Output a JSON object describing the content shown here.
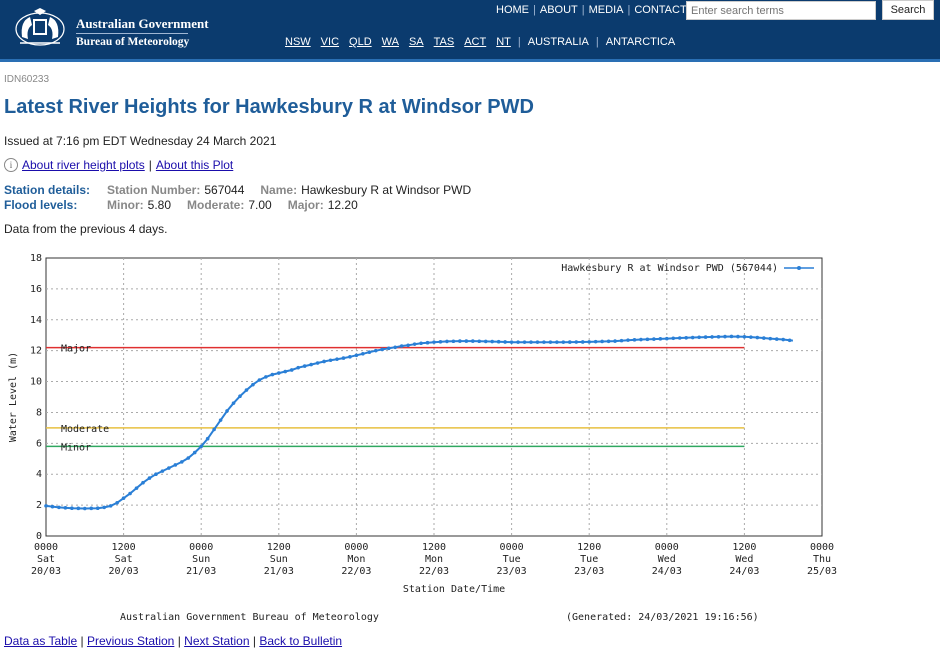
{
  "header": {
    "gov_title": "Australian Government",
    "bureau_name": "Bureau of Meteorology",
    "top_nav": [
      "HOME",
      "ABOUT",
      "MEDIA",
      "CONTACTS"
    ],
    "search_placeholder": "Enter search terms",
    "search_button": "Search",
    "states": [
      "NSW",
      "VIC",
      "QLD",
      "WA",
      "SA",
      "TAS",
      "ACT",
      "NT"
    ],
    "regions": [
      "AUSTRALIA",
      "ANTARCTICA"
    ]
  },
  "page": {
    "product_id": "IDN60233",
    "title": "Latest River Heights for Hawkesbury R at Windsor PWD",
    "issued": "Issued at 7:16 pm EDT Wednesday 24 March 2021",
    "about_link": "About river height plots",
    "about_plot_link": "About this Plot",
    "station_label": "Station details:",
    "station_number_label": "Station Number:",
    "station_number": "567044",
    "name_label": "Name:",
    "name": "Hawkesbury R at Windsor PWD",
    "flood_label": "Flood levels:",
    "minor_label": "Minor:",
    "minor": "5.80",
    "moderate_label": "Moderate:",
    "moderate": "7.00",
    "major_label": "Major:",
    "major": "12.20",
    "data_period": "Data from the previous 4 days."
  },
  "footer_links": [
    "Data as Table",
    "Previous Station",
    "Next Station",
    "Back to Bulletin"
  ],
  "chart_data": {
    "type": "line",
    "xlabel": "Station Date/Time",
    "ylabel": "Water Level (m)",
    "ylim": [
      0,
      18
    ],
    "yticks": [
      0,
      2,
      4,
      6,
      8,
      10,
      12,
      14,
      16,
      18
    ],
    "xlim": [
      0,
      120
    ],
    "x_unit": "hours since 0000 Sat 20/03",
    "xticks": [
      {
        "x": 0,
        "l1": "0000",
        "l2": "Sat",
        "l3": "20/03"
      },
      {
        "x": 12,
        "l1": "1200",
        "l2": "Sat",
        "l3": "20/03"
      },
      {
        "x": 24,
        "l1": "0000",
        "l2": "Sun",
        "l3": "21/03"
      },
      {
        "x": 36,
        "l1": "1200",
        "l2": "Sun",
        "l3": "21/03"
      },
      {
        "x": 48,
        "l1": "0000",
        "l2": "Mon",
        "l3": "22/03"
      },
      {
        "x": 60,
        "l1": "1200",
        "l2": "Mon",
        "l3": "22/03"
      },
      {
        "x": 72,
        "l1": "0000",
        "l2": "Tue",
        "l3": "23/03"
      },
      {
        "x": 84,
        "l1": "1200",
        "l2": "Tue",
        "l3": "23/03"
      },
      {
        "x": 96,
        "l1": "0000",
        "l2": "Wed",
        "l3": "24/03"
      },
      {
        "x": 108,
        "l1": "1200",
        "l2": "Wed",
        "l3": "24/03"
      },
      {
        "x": 120,
        "l1": "0000",
        "l2": "Thu",
        "l3": "25/03"
      }
    ],
    "grid": true,
    "legend_position": "top-right",
    "flood_levels": [
      {
        "name": "Major",
        "value": 12.2,
        "color": "#e03030"
      },
      {
        "name": "Moderate",
        "value": 7.0,
        "color": "#e8c040"
      },
      {
        "name": "Minor",
        "value": 5.8,
        "color": "#30a860"
      }
    ],
    "series": [
      {
        "name": "Hawkesbury R at Windsor PWD (567044)",
        "color": "#2a7fd6",
        "points": [
          [
            0,
            1.95
          ],
          [
            2,
            1.85
          ],
          [
            4,
            1.8
          ],
          [
            6,
            1.78
          ],
          [
            8,
            1.8
          ],
          [
            9,
            1.85
          ],
          [
            10,
            1.95
          ],
          [
            11,
            2.15
          ],
          [
            12,
            2.45
          ],
          [
            13,
            2.75
          ],
          [
            14,
            3.1
          ],
          [
            15,
            3.45
          ],
          [
            16,
            3.75
          ],
          [
            17,
            4.0
          ],
          [
            18,
            4.2
          ],
          [
            19,
            4.4
          ],
          [
            20,
            4.6
          ],
          [
            21,
            4.8
          ],
          [
            22,
            5.05
          ],
          [
            23,
            5.4
          ],
          [
            24,
            5.8
          ],
          [
            25,
            6.3
          ],
          [
            26,
            6.9
          ],
          [
            27,
            7.5
          ],
          [
            28,
            8.1
          ],
          [
            29,
            8.6
          ],
          [
            30,
            9.05
          ],
          [
            31,
            9.45
          ],
          [
            32,
            9.8
          ],
          [
            33,
            10.1
          ],
          [
            34,
            10.3
          ],
          [
            35,
            10.45
          ],
          [
            36,
            10.55
          ],
          [
            37,
            10.65
          ],
          [
            38,
            10.75
          ],
          [
            39,
            10.9
          ],
          [
            40,
            11.0
          ],
          [
            41,
            11.1
          ],
          [
            42,
            11.2
          ],
          [
            43,
            11.3
          ],
          [
            44,
            11.38
          ],
          [
            45,
            11.45
          ],
          [
            46,
            11.52
          ],
          [
            47,
            11.6
          ],
          [
            48,
            11.7
          ],
          [
            49,
            11.8
          ],
          [
            50,
            11.9
          ],
          [
            51,
            12.0
          ],
          [
            52,
            12.08
          ],
          [
            53,
            12.15
          ],
          [
            54,
            12.22
          ],
          [
            55,
            12.3
          ],
          [
            56,
            12.35
          ],
          [
            57,
            12.42
          ],
          [
            58,
            12.48
          ],
          [
            60,
            12.55
          ],
          [
            62,
            12.6
          ],
          [
            64,
            12.62
          ],
          [
            66,
            12.62
          ],
          [
            68,
            12.6
          ],
          [
            70,
            12.58
          ],
          [
            72,
            12.55
          ],
          [
            76,
            12.55
          ],
          [
            80,
            12.55
          ],
          [
            84,
            12.57
          ],
          [
            88,
            12.62
          ],
          [
            90,
            12.68
          ],
          [
            92,
            12.72
          ],
          [
            94,
            12.75
          ],
          [
            96,
            12.78
          ],
          [
            98,
            12.82
          ],
          [
            100,
            12.85
          ],
          [
            102,
            12.88
          ],
          [
            104,
            12.9
          ],
          [
            106,
            12.92
          ],
          [
            108,
            12.9
          ],
          [
            110,
            12.85
          ],
          [
            112,
            12.78
          ],
          [
            114,
            12.72
          ],
          [
            115.5,
            12.65
          ]
        ]
      }
    ],
    "credit": "Australian Government Bureau of Meteorology",
    "generated": "(Generated: 24/03/2021 19:16:56)"
  }
}
